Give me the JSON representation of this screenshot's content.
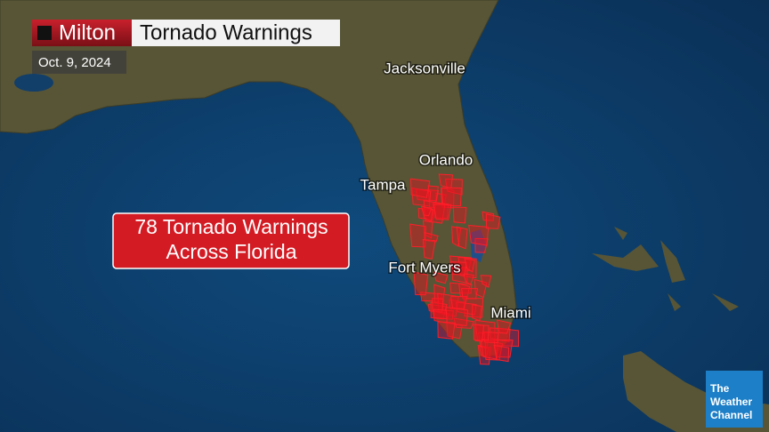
{
  "header": {
    "storm": "Milton",
    "title": "Tornado Warnings",
    "date": "Oct. 9, 2024"
  },
  "cities": [
    {
      "label": "Jacksonville"
    },
    {
      "label": "Orlando"
    },
    {
      "label": "Tampa"
    },
    {
      "label": "Fort Myers"
    },
    {
      "label": "Miami"
    }
  ],
  "callout": {
    "lines": [
      "78 Tornado Warnings",
      "Across Florida"
    ]
  },
  "logo": {
    "lines": [
      "The",
      "Weather",
      "Channel"
    ]
  }
}
